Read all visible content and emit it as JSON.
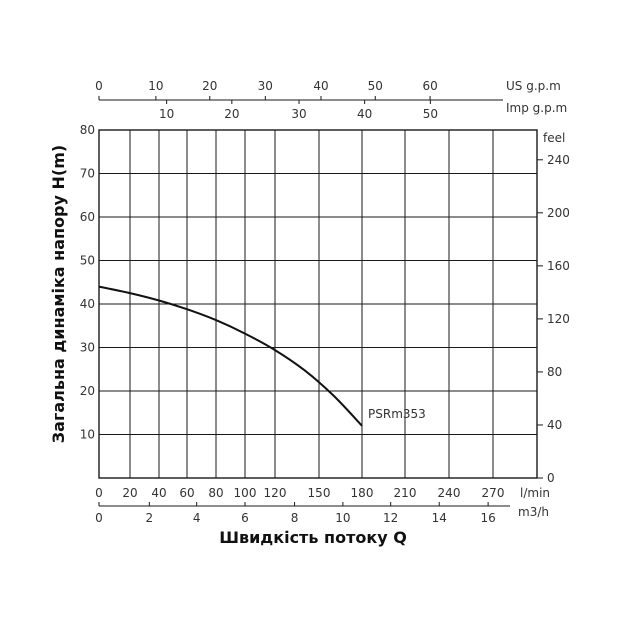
{
  "chart_data": {
    "type": "line",
    "xlabel": "Швидкість потоку Q",
    "ylabel": "Загальна динаміка напору H(m)",
    "x_lpm": [
      0,
      20,
      40,
      60,
      80,
      100,
      120,
      150,
      180
    ],
    "series": [
      {
        "name": "PSRm353",
        "x": [
          0,
          20,
          40,
          60,
          80,
          100,
          120,
          140,
          160,
          180
        ],
        "y": [
          44,
          42.5,
          40.8,
          38.8,
          36.3,
          33.2,
          29.4,
          24.8,
          19.0,
          12
        ]
      }
    ],
    "axes": {
      "left": {
        "ticks": [
          "10",
          "20",
          "30",
          "40",
          "50",
          "60",
          "70",
          "80"
        ],
        "ylim": [
          0,
          80
        ]
      },
      "right": {
        "unit": "feel",
        "ticks": [
          "0",
          "40",
          "80",
          "120",
          "160",
          "200",
          "240"
        ]
      },
      "bottom_lpm": {
        "unit": "l/min",
        "ticks": [
          "0",
          "20",
          "40",
          "60",
          "80",
          "100",
          "120",
          "150",
          "180",
          "210",
          "240",
          "270"
        ]
      },
      "bottom_m3h": {
        "unit": "m3/h",
        "ticks": [
          "0",
          "2",
          "4",
          "6",
          "8",
          "10",
          "12",
          "14",
          "16"
        ]
      },
      "top_us": {
        "unit": "US g.p.m",
        "ticks": [
          "0",
          "10",
          "20",
          "30",
          "40",
          "50",
          "60"
        ]
      },
      "top_imp": {
        "unit": "Imp g.p.m",
        "ticks": [
          "10",
          "20",
          "30",
          "40",
          "50"
        ]
      }
    },
    "grid": true,
    "legend": "none"
  }
}
